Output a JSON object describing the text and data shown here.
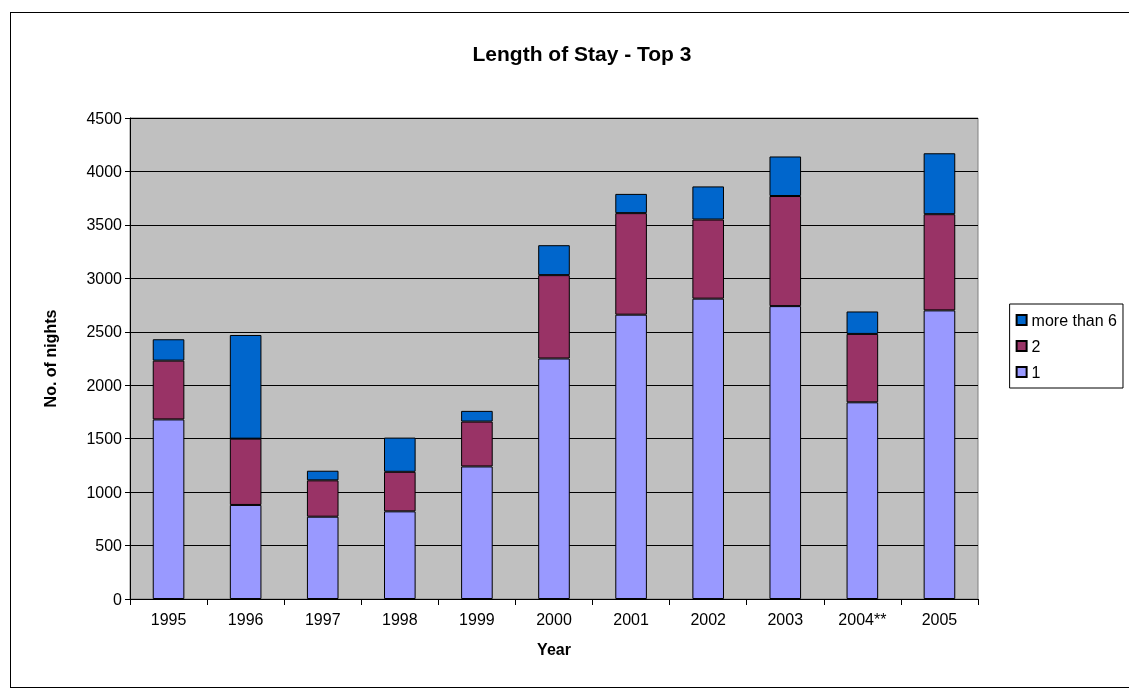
{
  "chart_data": {
    "type": "bar",
    "title": "Length of Stay - Top 3",
    "xlabel": "Year",
    "ylabel": "No. of nights",
    "categories": [
      "1995",
      "1996",
      "1997",
      "1998",
      "1999",
      "2000",
      "2001",
      "2002",
      "2003",
      "2004**",
      "2005"
    ],
    "series": [
      {
        "name": "1",
        "color": "#9999ff",
        "values": [
          1680,
          880,
          770,
          820,
          1240,
          2250,
          2660,
          2810,
          2740,
          1840,
          2700
        ]
      },
      {
        "name": "2",
        "color": "#993366",
        "values": [
          550,
          620,
          340,
          370,
          420,
          780,
          950,
          740,
          1030,
          640,
          900
        ]
      },
      {
        "name": "more than 6",
        "color": "#0066cc",
        "values": [
          200,
          970,
          90,
          320,
          100,
          280,
          180,
          310,
          370,
          210,
          570
        ]
      }
    ],
    "stacked": true,
    "ylim": [
      0,
      4500
    ],
    "yticks": [
      0,
      500,
      1000,
      1500,
      2000,
      2500,
      3000,
      3500,
      4000,
      4500
    ],
    "grid": "y",
    "legend": "right"
  }
}
